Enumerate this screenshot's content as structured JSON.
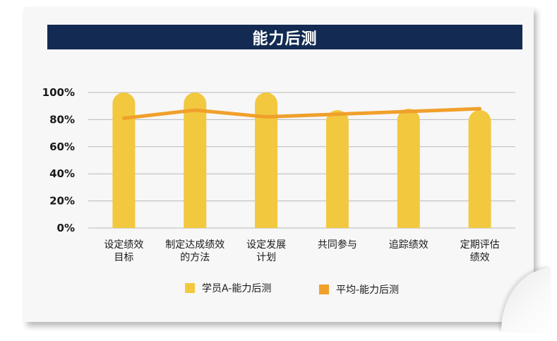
{
  "chart_data": {
    "type": "bar",
    "title": "能力后测",
    "categories": [
      [
        "设定绩效",
        "目标"
      ],
      [
        "制定达成绩效",
        "的方法"
      ],
      [
        "设定发展",
        "计划"
      ],
      [
        "共同参与"
      ],
      [
        "追踪绩效"
      ],
      [
        "定期评估",
        "绩效"
      ]
    ],
    "series": [
      {
        "name": "学员A-能力后测",
        "type": "bar",
        "color": "#f2c83f",
        "values": [
          100,
          100,
          100,
          87,
          88,
          87
        ]
      },
      {
        "name": "平均-能力后测",
        "type": "line",
        "color": "#f0a02b",
        "values": [
          81,
          87,
          82,
          84,
          86,
          88
        ]
      }
    ],
    "yticks": [
      "100%",
      "80%",
      "60%",
      "40%",
      "20%",
      "0%"
    ],
    "ylim": [
      0,
      100
    ],
    "grid": true,
    "legend": "bottom"
  },
  "colors": {
    "header_bg": "#132b52",
    "gridline": "#b8b8b8"
  }
}
